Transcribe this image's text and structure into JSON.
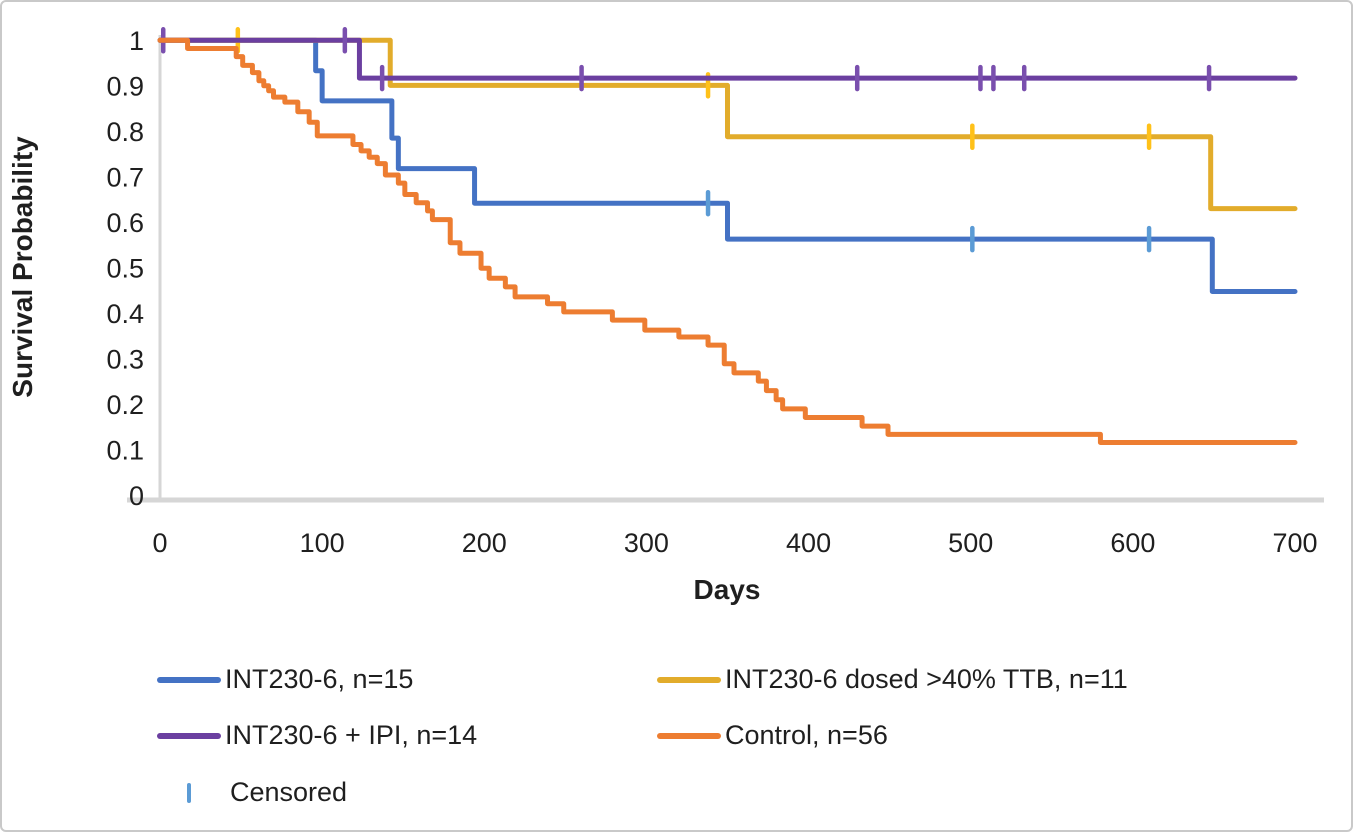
{
  "chart_data": {
    "type": "line",
    "subtype": "kaplan-meier-step",
    "title": "",
    "xlabel": "Days",
    "ylabel": "Survival Probability",
    "xlim": [
      0,
      700
    ],
    "ylim": [
      0,
      1
    ],
    "x_ticks": [
      "0",
      "100",
      "200",
      "300",
      "400",
      "500",
      "600",
      "700"
    ],
    "y_ticks": [
      "1",
      "0.9",
      "0.8",
      "0.7",
      "0.6",
      "0.5",
      "0.4",
      "0.3",
      "0.2",
      "0.1",
      "0"
    ],
    "grid": false,
    "legend_position": "bottom",
    "censored_label": "Censored",
    "censor_marker_color": "#5B9BD5",
    "axis_line_color": "#d6d6d6",
    "series": [
      {
        "id": "int230-6",
        "label": "INT230-6, n=15",
        "color": "#4472C4",
        "censor_color": "#5B9BD5",
        "steps": [
          [
            96,
            0.933
          ],
          [
            100,
            0.867
          ],
          [
            143,
            0.785
          ],
          [
            147,
            0.718
          ],
          [
            194,
            0.642
          ],
          [
            350,
            0.563
          ],
          [
            649,
            0.448
          ]
        ],
        "censored": [
          [
            338,
            0.642
          ],
          [
            501,
            0.563
          ],
          [
            610,
            0.563
          ]
        ]
      },
      {
        "id": "int230-6-dosed-40ttb",
        "label": "INT230-6 dosed >40% TTB, n=11",
        "color": "#E2AC2B",
        "censor_color": "#FFC119",
        "steps": [
          [
            142,
            0.901
          ],
          [
            350,
            0.788
          ],
          [
            648,
            0.63
          ]
        ],
        "censored": [
          [
            48,
            1
          ],
          [
            338,
            0.901
          ],
          [
            501,
            0.788
          ],
          [
            610,
            0.788
          ]
        ]
      },
      {
        "id": "int230-6-ipi",
        "label": "INT230-6 + IPI, n=14",
        "color": "#6B3FA0",
        "censor_color": "#7A4FAE",
        "steps": [
          [
            123,
            0.917
          ]
        ],
        "censored": [
          [
            2,
            1
          ],
          [
            114,
            1
          ],
          [
            137,
            0.917
          ],
          [
            260,
            0.917
          ],
          [
            430,
            0.917
          ],
          [
            506,
            0.917
          ],
          [
            514,
            0.917
          ],
          [
            533,
            0.917
          ],
          [
            647,
            0.917
          ]
        ]
      },
      {
        "id": "control",
        "label": "Control, n=56",
        "color": "#ED7D31",
        "censor_color": "#ED7D31",
        "steps": [
          [
            17,
            0.982
          ],
          [
            47,
            0.964
          ],
          [
            51,
            0.945
          ],
          [
            57,
            0.929
          ],
          [
            61,
            0.911
          ],
          [
            64,
            0.9
          ],
          [
            67,
            0.889
          ],
          [
            70,
            0.875
          ],
          [
            77,
            0.864
          ],
          [
            85,
            0.843
          ],
          [
            92,
            0.82
          ],
          [
            97,
            0.79
          ],
          [
            119,
            0.771
          ],
          [
            124,
            0.757
          ],
          [
            129,
            0.743
          ],
          [
            134,
            0.729
          ],
          [
            139,
            0.704
          ],
          [
            147,
            0.686
          ],
          [
            151,
            0.661
          ],
          [
            158,
            0.643
          ],
          [
            165,
            0.625
          ],
          [
            168,
            0.606
          ],
          [
            179,
            0.555
          ],
          [
            185,
            0.532
          ],
          [
            198,
            0.499
          ],
          [
            203,
            0.477
          ],
          [
            213,
            0.458
          ],
          [
            219,
            0.436
          ],
          [
            239,
            0.421
          ],
          [
            249,
            0.403
          ],
          [
            279,
            0.385
          ],
          [
            299,
            0.363
          ],
          [
            320,
            0.348
          ],
          [
            338,
            0.33
          ],
          [
            348,
            0.289
          ],
          [
            354,
            0.269
          ],
          [
            369,
            0.251
          ],
          [
            374,
            0.23
          ],
          [
            380,
            0.21
          ],
          [
            384,
            0.19
          ],
          [
            398,
            0.171
          ],
          [
            433,
            0.152
          ],
          [
            449,
            0.134
          ],
          [
            580,
            0.116
          ]
        ],
        "censored": []
      }
    ]
  }
}
